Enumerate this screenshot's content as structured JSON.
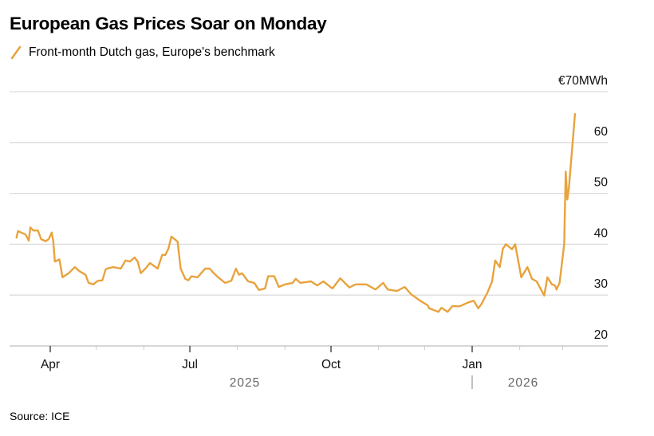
{
  "title": "European Gas Prices Soar on Monday",
  "legend": {
    "label": "Front-month Dutch gas, Europe's benchmark",
    "icon": "slash-line-icon"
  },
  "source": "Source: ICE",
  "chart_data": {
    "type": "line",
    "title": "European Gas Prices Soar on Monday",
    "series": [
      {
        "name": "Front-month Dutch gas, Europe's benchmark",
        "color": "#E8A33D",
        "points": [
          [
            "2025-03-10",
            41.3
          ],
          [
            "2025-03-11",
            42.6
          ],
          [
            "2025-03-13",
            42.3
          ],
          [
            "2025-03-16",
            41.9
          ],
          [
            "2025-03-18",
            40.7
          ],
          [
            "2025-03-19",
            43.3
          ],
          [
            "2025-03-21",
            42.7
          ],
          [
            "2025-03-24",
            42.7
          ],
          [
            "2025-03-26",
            41.0
          ],
          [
            "2025-03-29",
            40.6
          ],
          [
            "2025-03-31",
            41.0
          ],
          [
            "2025-04-02",
            42.3
          ],
          [
            "2025-04-03",
            40.5
          ],
          [
            "2025-04-04",
            36.6
          ],
          [
            "2025-04-07",
            37.0
          ],
          [
            "2025-04-09",
            33.5
          ],
          [
            "2025-04-13",
            34.3
          ],
          [
            "2025-04-17",
            35.5
          ],
          [
            "2025-04-20",
            34.7
          ],
          [
            "2025-04-24",
            34.0
          ],
          [
            "2025-04-26",
            32.4
          ],
          [
            "2025-04-29",
            32.1
          ],
          [
            "2025-05-02",
            32.8
          ],
          [
            "2025-05-05",
            32.9
          ],
          [
            "2025-05-07",
            35.0
          ],
          [
            "2025-05-08",
            35.2
          ],
          [
            "2025-05-12",
            35.5
          ],
          [
            "2025-05-17",
            35.2
          ],
          [
            "2025-05-20",
            36.8
          ],
          [
            "2025-05-23",
            36.6
          ],
          [
            "2025-05-26",
            37.4
          ],
          [
            "2025-05-28",
            36.6
          ],
          [
            "2025-05-30",
            34.3
          ],
          [
            "2025-06-02",
            35.2
          ],
          [
            "2025-06-05",
            36.3
          ],
          [
            "2025-06-10",
            35.2
          ],
          [
            "2025-06-13",
            37.9
          ],
          [
            "2025-06-15",
            37.9
          ],
          [
            "2025-06-17",
            39.1
          ],
          [
            "2025-06-19",
            41.5
          ],
          [
            "2025-06-23",
            40.5
          ],
          [
            "2025-06-25",
            35.2
          ],
          [
            "2025-06-28",
            33.2
          ],
          [
            "2025-06-30",
            32.9
          ],
          [
            "2025-07-02",
            33.7
          ],
          [
            "2025-07-06",
            33.5
          ],
          [
            "2025-07-11",
            35.2
          ],
          [
            "2025-07-14",
            35.2
          ],
          [
            "2025-07-16",
            34.5
          ],
          [
            "2025-07-19",
            33.6
          ],
          [
            "2025-07-24",
            32.4
          ],
          [
            "2025-07-28",
            32.8
          ],
          [
            "2025-07-31",
            35.2
          ],
          [
            "2025-08-02",
            34.0
          ],
          [
            "2025-08-04",
            34.3
          ],
          [
            "2025-08-08",
            32.7
          ],
          [
            "2025-08-12",
            32.4
          ],
          [
            "2025-08-15",
            31.0
          ],
          [
            "2025-08-19",
            31.3
          ],
          [
            "2025-08-21",
            33.7
          ],
          [
            "2025-08-25",
            33.7
          ],
          [
            "2025-08-28",
            31.6
          ],
          [
            "2025-09-01",
            32.1
          ],
          [
            "2025-09-06",
            32.4
          ],
          [
            "2025-09-08",
            33.2
          ],
          [
            "2025-09-11",
            32.4
          ],
          [
            "2025-09-18",
            32.7
          ],
          [
            "2025-09-22",
            31.9
          ],
          [
            "2025-09-26",
            32.7
          ],
          [
            "2025-10-01",
            31.5
          ],
          [
            "2025-10-02",
            31.3
          ],
          [
            "2025-10-07",
            33.3
          ],
          [
            "2025-10-13",
            31.5
          ],
          [
            "2025-10-17",
            32.1
          ],
          [
            "2025-10-24",
            32.1
          ],
          [
            "2025-10-30",
            31.1
          ],
          [
            "2025-11-04",
            32.4
          ],
          [
            "2025-11-07",
            31.1
          ],
          [
            "2025-11-13",
            30.8
          ],
          [
            "2025-11-18",
            31.6
          ],
          [
            "2025-11-22",
            30.2
          ],
          [
            "2025-11-28",
            28.9
          ],
          [
            "2025-12-03",
            28.0
          ],
          [
            "2025-12-04",
            27.4
          ],
          [
            "2025-12-10",
            26.7
          ],
          [
            "2025-12-12",
            27.5
          ],
          [
            "2025-12-16",
            26.7
          ],
          [
            "2025-12-19",
            27.8
          ],
          [
            "2025-12-24",
            27.8
          ],
          [
            "2025-12-29",
            28.5
          ],
          [
            "2026-01-02",
            28.9
          ],
          [
            "2026-01-05",
            27.4
          ],
          [
            "2026-01-07",
            28.2
          ],
          [
            "2026-01-11",
            30.5
          ],
          [
            "2026-01-14",
            32.7
          ],
          [
            "2026-01-16",
            36.8
          ],
          [
            "2026-01-19",
            35.5
          ],
          [
            "2026-01-21",
            39.1
          ],
          [
            "2026-01-23",
            40.0
          ],
          [
            "2026-01-27",
            39.0
          ],
          [
            "2026-01-29",
            40.0
          ],
          [
            "2026-02-02",
            33.5
          ],
          [
            "2026-02-06",
            35.5
          ],
          [
            "2026-02-09",
            33.2
          ],
          [
            "2026-02-12",
            32.7
          ],
          [
            "2026-02-17",
            29.9
          ],
          [
            "2026-02-19",
            33.5
          ],
          [
            "2026-02-22",
            32.1
          ],
          [
            "2026-02-24",
            31.9
          ],
          [
            "2026-02-25",
            31.1
          ],
          [
            "2026-02-27",
            32.4
          ],
          [
            "2026-03-02",
            40.0
          ],
          [
            "2026-03-03",
            54.3
          ],
          [
            "2026-03-04",
            48.8
          ],
          [
            "2026-03-05",
            50.9
          ],
          [
            "2026-03-09",
            65.6
          ]
        ]
      }
    ],
    "ylim": [
      20,
      70
    ],
    "yticks": [
      20,
      30,
      40,
      50,
      60,
      70
    ],
    "ytick_labels": [
      "20",
      "30",
      "40",
      "50",
      "60",
      "€70MWh"
    ],
    "xticks": [
      {
        "date": "2025-04-01",
        "label": "Apr"
      },
      {
        "date": "2025-07-01",
        "label": "Jul"
      },
      {
        "date": "2025-10-01",
        "label": "Oct"
      },
      {
        "date": "2026-01-01",
        "label": "Jan"
      }
    ],
    "minor_xticks": [
      "2025-05-01",
      "2025-06-01",
      "2025-08-01",
      "2025-09-01",
      "2025-11-01",
      "2025-12-01",
      "2026-02-01",
      "2026-03-01"
    ],
    "year_labels": [
      {
        "label": "2025"
      },
      {
        "label": "2026"
      }
    ],
    "grid": true,
    "legend_position": "top-left",
    "xlabel": "",
    "ylabel": ""
  }
}
